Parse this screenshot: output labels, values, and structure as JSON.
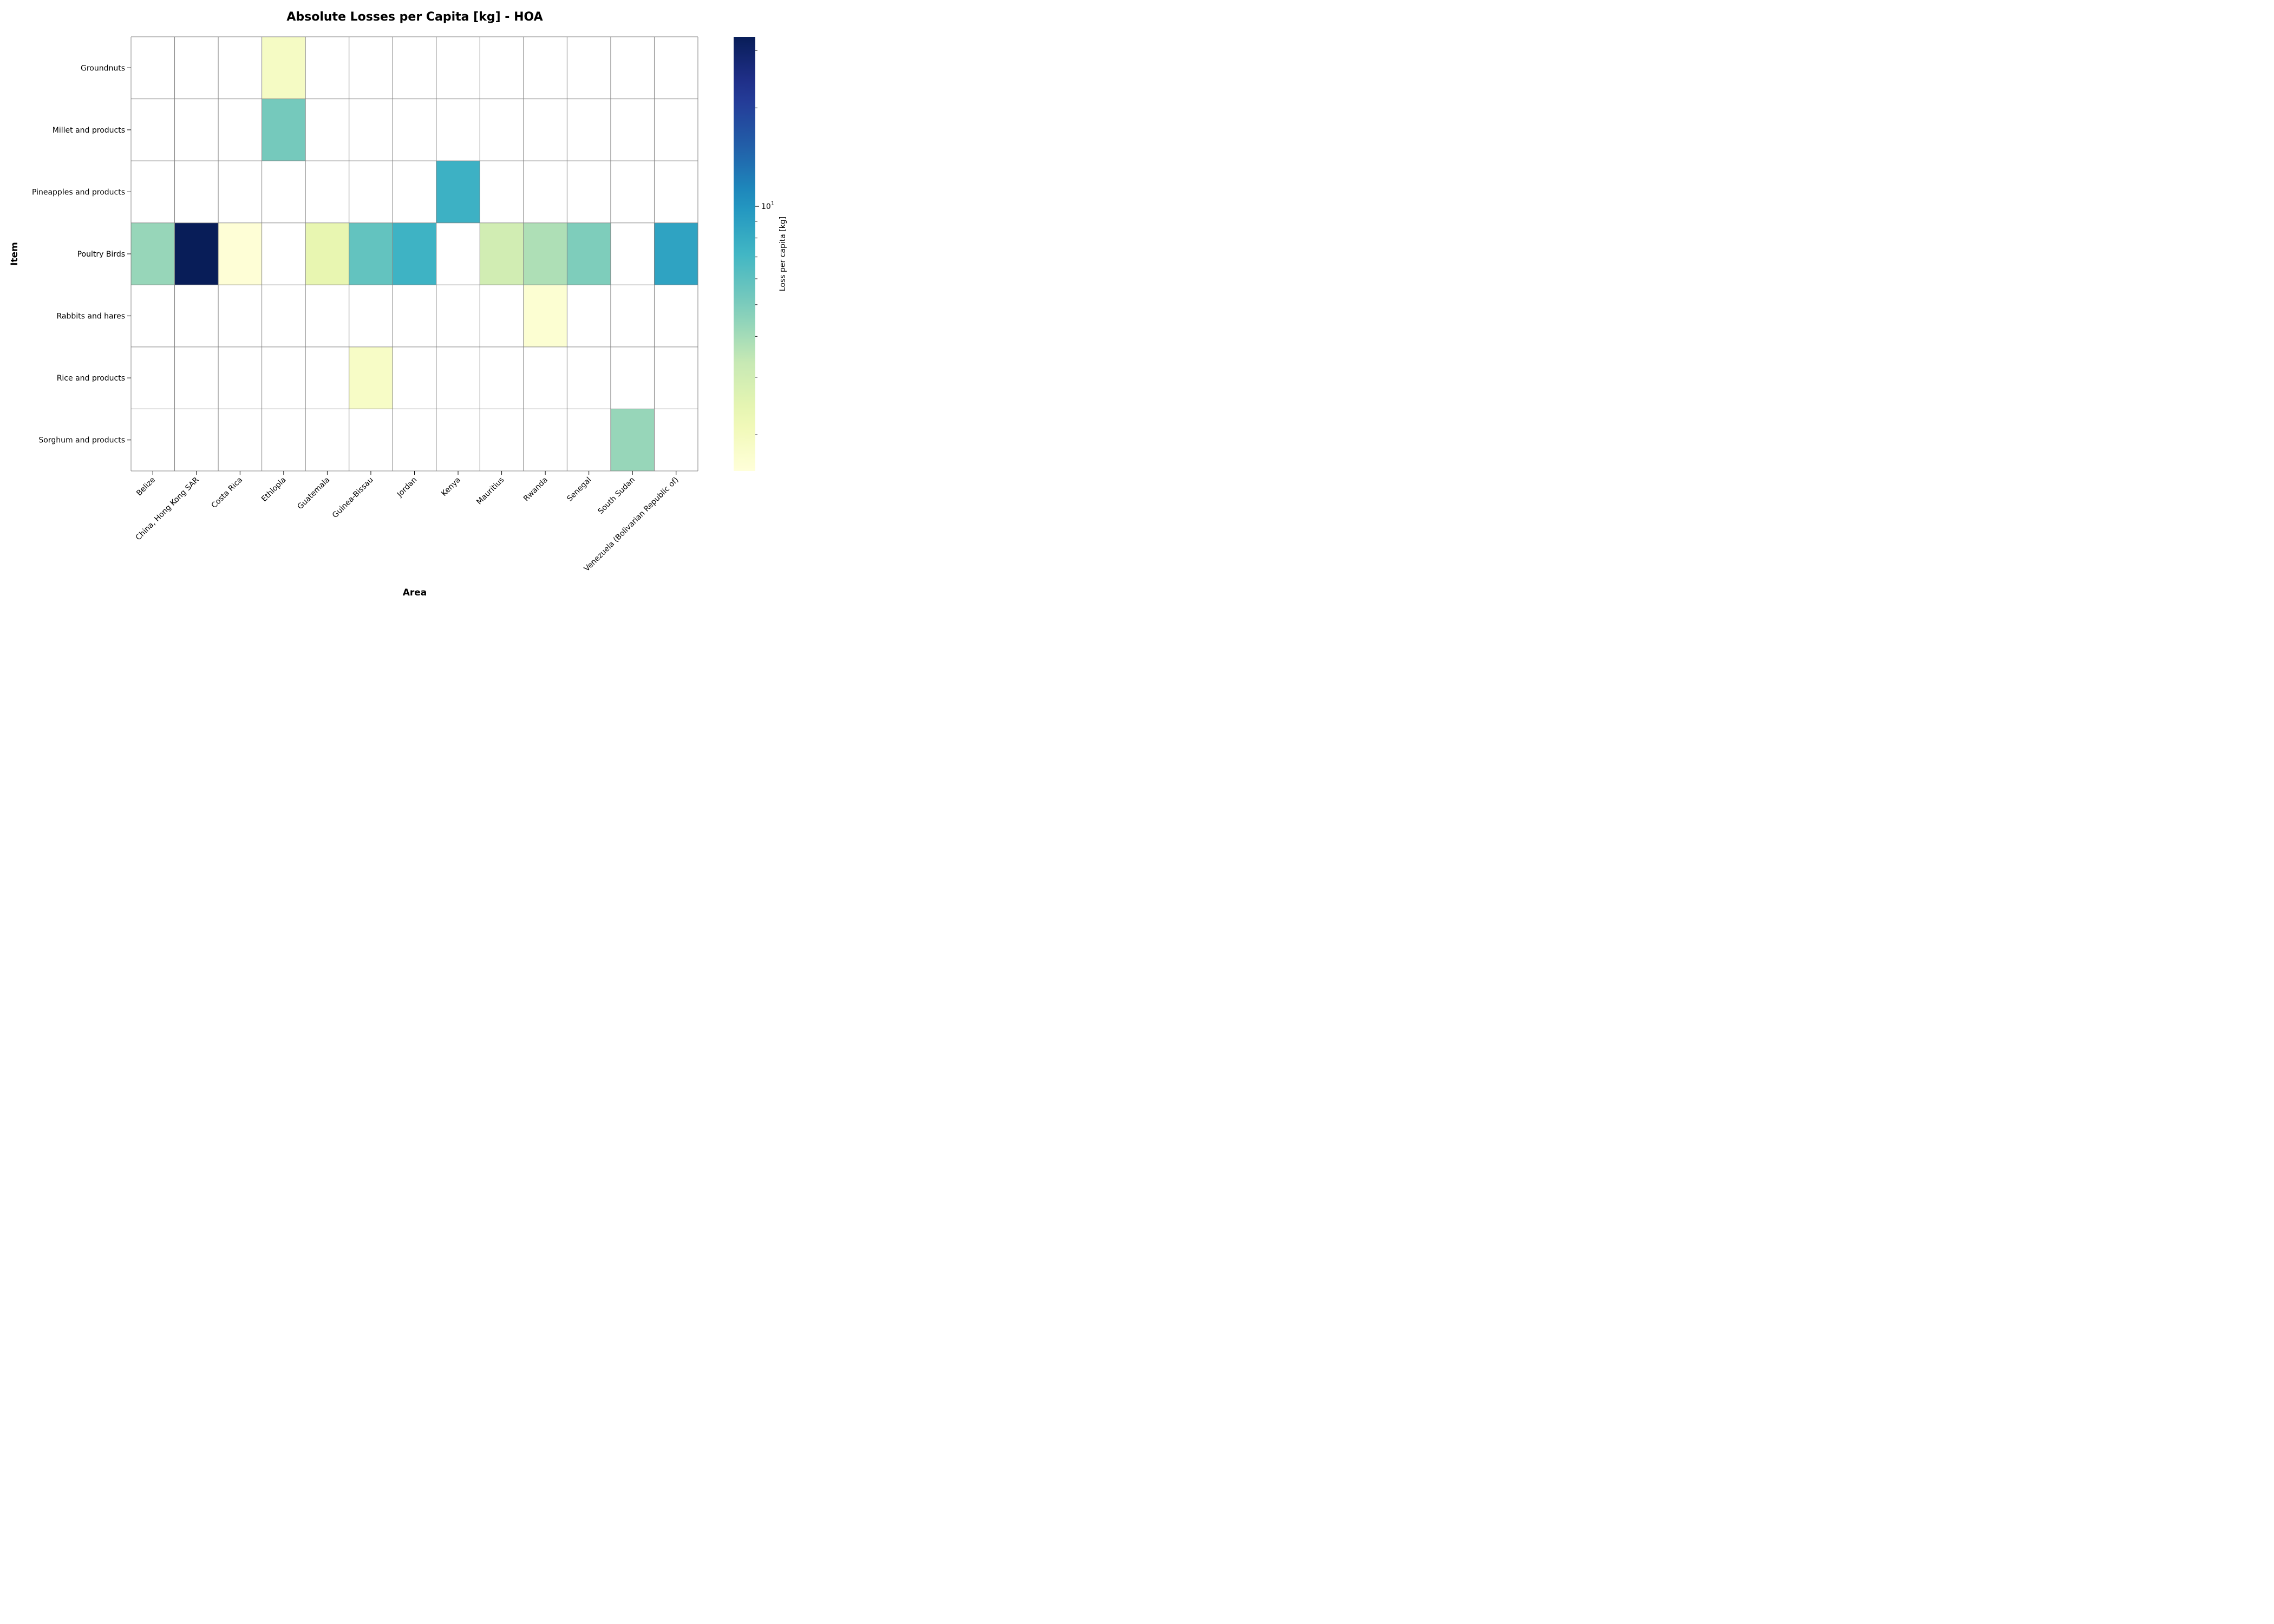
{
  "chart_data": {
    "type": "heatmap",
    "title": "Absolute Losses per Capita [kg] - HOA",
    "xlabel": "Area",
    "ylabel": "Item",
    "x_categories": [
      "Belize",
      "China, Hong Kong SAR",
      "Costa Rica",
      "Ethiopia",
      "Guatemala",
      "Guinea-Bissau",
      "Jordan",
      "Kenya",
      "Mauritius",
      "Rwanda",
      "Senegal",
      "South Sudan",
      "Venezuela (Bolivarian Republic of)"
    ],
    "y_categories": [
      "Groundnuts",
      "Millet and products",
      "Pineapples and products",
      "Poultry Birds",
      "Rabbits and hares",
      "Rice and products",
      "Sorghum and products"
    ],
    "cells": [
      {
        "x": "Ethiopia",
        "y": "Groundnuts",
        "value": 1.9
      },
      {
        "x": "Ethiopia",
        "y": "Millet and products",
        "value": 5.2
      },
      {
        "x": "Kenya",
        "y": "Pineapples and products",
        "value": 7.5
      },
      {
        "x": "Belize",
        "y": "Poultry Birds",
        "value": 4.3
      },
      {
        "x": "China, Hong Kong SAR",
        "y": "Poultry Birds",
        "value": 33.0
      },
      {
        "x": "Costa Rica",
        "y": "Poultry Birds",
        "value": 1.6
      },
      {
        "x": "Guatemala",
        "y": "Poultry Birds",
        "value": 2.4
      },
      {
        "x": "Guinea-Bissau",
        "y": "Poultry Birds",
        "value": 5.8
      },
      {
        "x": "Jordan",
        "y": "Poultry Birds",
        "value": 7.4
      },
      {
        "x": "Mauritius",
        "y": "Poultry Birds",
        "value": 3.0
      },
      {
        "x": "Rwanda",
        "y": "Poultry Birds",
        "value": 3.8
      },
      {
        "x": "Senegal",
        "y": "Poultry Birds",
        "value": 4.9
      },
      {
        "x": "Venezuela (Bolivarian Republic of)",
        "y": "Poultry Birds",
        "value": 8.7
      },
      {
        "x": "Rwanda",
        "y": "Rabbits and hares",
        "value": 1.65
      },
      {
        "x": "Guinea-Bissau",
        "y": "Rice and products",
        "value": 1.85
      },
      {
        "x": "South Sudan",
        "y": "Sorghum and products",
        "value": 4.3
      }
    ],
    "colorbar": {
      "label": "Loss per capita [kg]",
      "scale": "log",
      "colormap": "YlGnBu",
      "vmin": 1.55,
      "vmax": 33.0,
      "major_ticks": [
        {
          "value": 10,
          "base": "10",
          "exp": "1"
        }
      ],
      "minor_ticks": [
        2,
        3,
        4,
        5,
        6,
        7,
        8,
        9,
        20,
        30
      ]
    },
    "grid": true,
    "missing_cell_color": "#ffffff",
    "cell_border_color": "#808080"
  }
}
